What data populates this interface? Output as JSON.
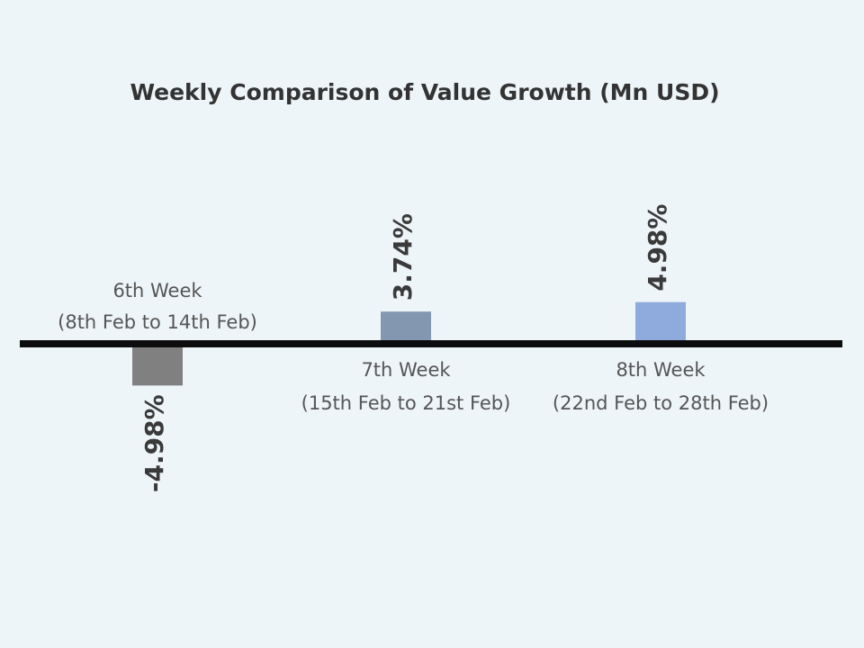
{
  "chart_data": {
    "type": "bar",
    "title": "Weekly Comparison of Value Growth (Mn USD)",
    "xlabel": "",
    "ylabel": "",
    "categories": [
      {
        "line1": "6th Week",
        "line2": "(8th Feb to 14th Feb)"
      },
      {
        "line1": "7th Week",
        "line2": "(15th Feb to 21st Feb)"
      },
      {
        "line1": "8th Week",
        "line2": "(22nd Feb to 28th Feb)"
      }
    ],
    "values": [
      -4.98,
      3.74,
      4.98
    ],
    "value_labels": [
      "-4.98%",
      "3.74%",
      "4.98%"
    ],
    "unit": "%",
    "grid": false,
    "legend": "none",
    "colors": [
      "#808080",
      "#8497b0",
      "#8faadc"
    ],
    "axis_color": "#0d0d0d"
  }
}
